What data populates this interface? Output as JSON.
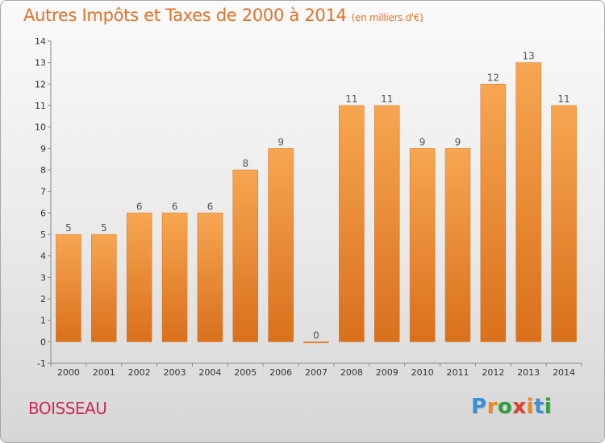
{
  "title": {
    "main": "Autres Impôts et Taxes de 2000 à 2014",
    "unit": "(en milliers d'€)"
  },
  "location": "BOISSEAU",
  "logo": {
    "text": "Proxiti",
    "colors": [
      "#3a8fd6",
      "#f08a1c",
      "#2e9e3e",
      "#e0412f",
      "#f08a1c",
      "#3a8fd6",
      "#2e9e3e"
    ]
  },
  "colors": {
    "bar_light": "#f7a651",
    "bar_dark": "#d9701c",
    "title": "#e0712a",
    "location": "#cc2d4d"
  },
  "chart_data": {
    "type": "bar",
    "categories": [
      "2000",
      "2001",
      "2002",
      "2003",
      "2004",
      "2005",
      "2006",
      "2007",
      "2008",
      "2009",
      "2010",
      "2011",
      "2012",
      "2013",
      "2014"
    ],
    "values": [
      5,
      5,
      6,
      6,
      6,
      8,
      9,
      0,
      11,
      11,
      9,
      9,
      12,
      13,
      11
    ],
    "data_labels": [
      "5",
      "5",
      "6",
      "6",
      "6",
      "8",
      "9",
      "0",
      "11",
      "11",
      "9",
      "9",
      "12",
      "13",
      "11"
    ],
    "ylim": [
      -1,
      14
    ],
    "yticks": [
      "-1",
      "0",
      "1",
      "2",
      "3",
      "4",
      "5",
      "6",
      "7",
      "8",
      "9",
      "10",
      "11",
      "12",
      "13",
      "14"
    ],
    "grid": false,
    "xlabel": "",
    "ylabel": ""
  }
}
